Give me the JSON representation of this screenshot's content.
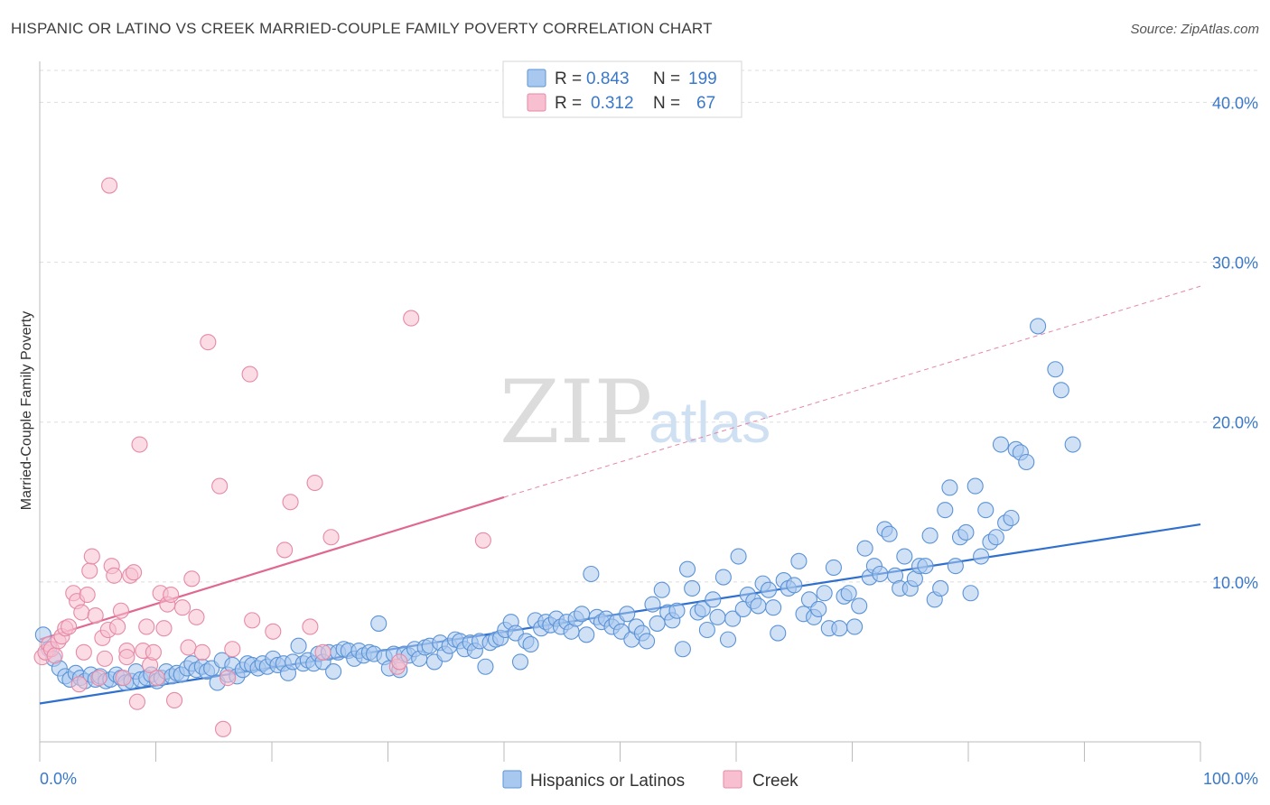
{
  "title": "HISPANIC OR LATINO VS CREEK MARRIED-COUPLE FAMILY POVERTY CORRELATION CHART",
  "source": "Source: ZipAtlas.com",
  "watermark": {
    "zip": "ZIP",
    "atlas": "atlas"
  },
  "chart_data": {
    "type": "scatter",
    "ylabel": "Married-Couple Family Poverty",
    "xlim": [
      0,
      100
    ],
    "ylim": [
      0,
      42
    ],
    "x_tick_labels": [
      "0.0%",
      "100.0%"
    ],
    "y_ticks": [
      10,
      20,
      30,
      40
    ],
    "y_tick_labels": [
      "10.0%",
      "20.0%",
      "30.0%",
      "40.0%"
    ],
    "grid": true,
    "legend_position": "top-center",
    "legend": [
      {
        "r_label": "R =",
        "r_value": "0.843",
        "n_label": "N =",
        "n_value": "199",
        "color": "#a9c8ef",
        "edge": "#5b93d6"
      },
      {
        "r_label": "R =",
        "r_value": "0.312",
        "n_label": "N =",
        "n_value": "67",
        "color": "#f7bfd0",
        "edge": "#e58aa6"
      }
    ],
    "series": [
      {
        "name": "Hispanics or Latinos",
        "color": "#a9c8ef",
        "edge": "#5b93d6",
        "line_color": "#2f6fce",
        "trend": {
          "x0": 0,
          "y0": 2.4,
          "x1": 100,
          "y1": 13.6
        },
        "points": [
          [
            0.3,
            6.7
          ],
          [
            0.8,
            5.8
          ],
          [
            1.2,
            5.2
          ],
          [
            1.7,
            4.6
          ],
          [
            2.2,
            4.1
          ],
          [
            2.6,
            3.9
          ],
          [
            3.1,
            4.3
          ],
          [
            3.5,
            4.0
          ],
          [
            3.9,
            3.8
          ],
          [
            4.4,
            4.2
          ],
          [
            4.8,
            3.9
          ],
          [
            5.2,
            4.1
          ],
          [
            5.7,
            3.8
          ],
          [
            6.1,
            3.9
          ],
          [
            6.6,
            4.2
          ],
          [
            7.0,
            4.0
          ],
          [
            7.4,
            3.7
          ],
          [
            7.9,
            3.8
          ],
          [
            8.3,
            4.4
          ],
          [
            8.7,
            3.9
          ],
          [
            9.2,
            4.0
          ],
          [
            9.6,
            4.2
          ],
          [
            10.1,
            3.8
          ],
          [
            10.5,
            4.0
          ],
          [
            10.9,
            4.4
          ],
          [
            11.4,
            4.1
          ],
          [
            11.8,
            4.3
          ],
          [
            12.2,
            4.2
          ],
          [
            12.7,
            4.6
          ],
          [
            13.1,
            4.9
          ],
          [
            13.5,
            4.5
          ],
          [
            14.0,
            4.7
          ],
          [
            14.4,
            4.4
          ],
          [
            14.8,
            4.6
          ],
          [
            15.3,
            3.7
          ],
          [
            15.7,
            5.1
          ],
          [
            16.2,
            4.2
          ],
          [
            16.6,
            4.8
          ],
          [
            17.0,
            4.1
          ],
          [
            17.5,
            4.5
          ],
          [
            17.9,
            4.9
          ],
          [
            18.3,
            4.8
          ],
          [
            18.8,
            4.6
          ],
          [
            19.2,
            4.9
          ],
          [
            19.6,
            4.7
          ],
          [
            20.1,
            5.2
          ],
          [
            20.5,
            4.8
          ],
          [
            21.0,
            4.9
          ],
          [
            21.4,
            4.3
          ],
          [
            21.8,
            5.0
          ],
          [
            22.3,
            6.0
          ],
          [
            22.7,
            4.9
          ],
          [
            23.1,
            5.1
          ],
          [
            23.6,
            4.9
          ],
          [
            24.0,
            5.5
          ],
          [
            24.4,
            5.0
          ],
          [
            24.9,
            5.6
          ],
          [
            25.3,
            4.4
          ],
          [
            25.7,
            5.6
          ],
          [
            26.2,
            5.8
          ],
          [
            26.6,
            5.7
          ],
          [
            27.1,
            5.2
          ],
          [
            27.5,
            5.7
          ],
          [
            27.9,
            5.4
          ],
          [
            28.4,
            5.6
          ],
          [
            28.8,
            5.5
          ],
          [
            29.2,
            7.4
          ],
          [
            29.7,
            5.3
          ],
          [
            30.1,
            4.6
          ],
          [
            30.5,
            5.5
          ],
          [
            31.0,
            4.5
          ],
          [
            31.4,
            5.5
          ],
          [
            31.8,
            5.4
          ],
          [
            32.3,
            5.8
          ],
          [
            32.7,
            5.2
          ],
          [
            33.2,
            5.9
          ],
          [
            33.6,
            6.0
          ],
          [
            34.0,
            5.0
          ],
          [
            34.5,
            6.2
          ],
          [
            34.9,
            5.5
          ],
          [
            35.3,
            6.0
          ],
          [
            35.8,
            6.4
          ],
          [
            36.2,
            6.3
          ],
          [
            36.6,
            5.8
          ],
          [
            37.1,
            6.2
          ],
          [
            37.5,
            5.7
          ],
          [
            37.9,
            6.3
          ],
          [
            38.4,
            4.7
          ],
          [
            38.8,
            6.2
          ],
          [
            39.3,
            6.4
          ],
          [
            39.7,
            6.5
          ],
          [
            40.1,
            7.0
          ],
          [
            40.6,
            7.5
          ],
          [
            41.0,
            6.8
          ],
          [
            41.4,
            5.0
          ],
          [
            41.9,
            6.3
          ],
          [
            42.3,
            6.1
          ],
          [
            42.7,
            7.6
          ],
          [
            43.2,
            7.1
          ],
          [
            43.6,
            7.5
          ],
          [
            44.0,
            7.3
          ],
          [
            44.5,
            7.7
          ],
          [
            44.9,
            7.2
          ],
          [
            45.4,
            7.5
          ],
          [
            45.8,
            6.9
          ],
          [
            46.2,
            7.7
          ],
          [
            46.7,
            8.0
          ],
          [
            47.1,
            6.7
          ],
          [
            47.5,
            10.5
          ],
          [
            48.0,
            7.8
          ],
          [
            48.4,
            7.5
          ],
          [
            48.8,
            7.7
          ],
          [
            49.3,
            7.2
          ],
          [
            49.7,
            7.5
          ],
          [
            50.1,
            6.9
          ],
          [
            50.6,
            8.0
          ],
          [
            51.0,
            6.4
          ],
          [
            51.4,
            7.2
          ],
          [
            51.9,
            6.8
          ],
          [
            52.3,
            6.3
          ],
          [
            52.8,
            8.6
          ],
          [
            53.2,
            7.4
          ],
          [
            53.6,
            9.5
          ],
          [
            54.1,
            8.1
          ],
          [
            54.5,
            7.6
          ],
          [
            54.9,
            8.2
          ],
          [
            55.4,
            5.8
          ],
          [
            55.8,
            10.8
          ],
          [
            56.2,
            9.6
          ],
          [
            56.7,
            8.1
          ],
          [
            57.1,
            8.3
          ],
          [
            57.5,
            7.0
          ],
          [
            58.0,
            8.9
          ],
          [
            58.4,
            7.8
          ],
          [
            58.9,
            10.3
          ],
          [
            59.3,
            6.4
          ],
          [
            59.7,
            7.7
          ],
          [
            60.2,
            11.6
          ],
          [
            60.6,
            8.3
          ],
          [
            61.0,
            9.2
          ],
          [
            61.5,
            8.8
          ],
          [
            61.9,
            8.5
          ],
          [
            62.3,
            9.9
          ],
          [
            62.8,
            9.5
          ],
          [
            63.2,
            8.4
          ],
          [
            63.6,
            6.8
          ],
          [
            64.1,
            10.1
          ],
          [
            64.5,
            9.6
          ],
          [
            65.0,
            9.8
          ],
          [
            65.4,
            11.3
          ],
          [
            65.8,
            8.0
          ],
          [
            66.3,
            8.9
          ],
          [
            66.7,
            7.8
          ],
          [
            67.1,
            8.3
          ],
          [
            67.6,
            9.3
          ],
          [
            68.0,
            7.1
          ],
          [
            68.4,
            10.9
          ],
          [
            68.9,
            7.1
          ],
          [
            69.3,
            9.1
          ],
          [
            69.7,
            9.3
          ],
          [
            70.2,
            7.2
          ],
          [
            70.6,
            8.5
          ],
          [
            71.1,
            12.1
          ],
          [
            71.5,
            10.3
          ],
          [
            71.9,
            11.0
          ],
          [
            72.4,
            10.5
          ],
          [
            72.8,
            13.3
          ],
          [
            73.2,
            13.0
          ],
          [
            73.7,
            10.4
          ],
          [
            74.1,
            9.6
          ],
          [
            74.5,
            11.6
          ],
          [
            75.0,
            9.6
          ],
          [
            75.4,
            10.2
          ],
          [
            75.8,
            11.0
          ],
          [
            76.3,
            11.0
          ],
          [
            76.7,
            12.9
          ],
          [
            77.1,
            8.9
          ],
          [
            77.6,
            9.6
          ],
          [
            78.0,
            14.5
          ],
          [
            78.4,
            15.9
          ],
          [
            78.9,
            11.0
          ],
          [
            79.3,
            12.8
          ],
          [
            79.8,
            13.1
          ],
          [
            80.2,
            9.3
          ],
          [
            80.6,
            16.0
          ],
          [
            81.1,
            11.6
          ],
          [
            81.5,
            14.5
          ],
          [
            81.9,
            12.5
          ],
          [
            82.4,
            12.8
          ],
          [
            82.8,
            18.6
          ],
          [
            83.2,
            13.7
          ],
          [
            83.7,
            14.0
          ],
          [
            84.1,
            18.3
          ],
          [
            84.5,
            18.1
          ],
          [
            85.0,
            17.5
          ],
          [
            86.0,
            26.0
          ],
          [
            87.5,
            23.3
          ],
          [
            88.0,
            22.0
          ],
          [
            89.0,
            18.6
          ]
        ]
      },
      {
        "name": "Creek",
        "color": "#f7bfd0",
        "edge": "#e58aa6",
        "line_color": "#e06890",
        "trend": {
          "x0": 0,
          "y0": 6.4,
          "x1": 40,
          "y1": 15.3
        },
        "trend_extend": {
          "x0": 40,
          "y0": 15.3,
          "x1": 100,
          "y1": 28.5
        },
        "points": [
          [
            0.2,
            5.3
          ],
          [
            0.5,
            5.6
          ],
          [
            0.8,
            6.1
          ],
          [
            1.0,
            5.8
          ],
          [
            1.3,
            5.4
          ],
          [
            1.6,
            6.3
          ],
          [
            1.9,
            6.6
          ],
          [
            2.2,
            7.1
          ],
          [
            2.5,
            7.2
          ],
          [
            2.9,
            9.3
          ],
          [
            3.2,
            8.8
          ],
          [
            3.4,
            3.6
          ],
          [
            3.6,
            8.1
          ],
          [
            3.8,
            5.6
          ],
          [
            4.1,
            9.2
          ],
          [
            4.3,
            10.7
          ],
          [
            4.5,
            11.6
          ],
          [
            4.8,
            7.9
          ],
          [
            5.1,
            4.0
          ],
          [
            5.4,
            6.5
          ],
          [
            5.6,
            5.2
          ],
          [
            5.9,
            7.0
          ],
          [
            6.2,
            11.0
          ],
          [
            6.4,
            10.4
          ],
          [
            6.7,
            7.2
          ],
          [
            7.0,
            8.2
          ],
          [
            7.2,
            4.0
          ],
          [
            7.5,
            5.7
          ],
          [
            7.8,
            10.4
          ],
          [
            8.1,
            10.6
          ],
          [
            8.4,
            2.5
          ],
          [
            8.6,
            18.6
          ],
          [
            8.9,
            5.7
          ],
          [
            9.2,
            7.2
          ],
          [
            9.5,
            4.8
          ],
          [
            9.8,
            5.6
          ],
          [
            10.1,
            4.0
          ],
          [
            10.4,
            9.3
          ],
          [
            10.7,
            7.1
          ],
          [
            11.0,
            8.6
          ],
          [
            11.3,
            9.2
          ],
          [
            11.6,
            2.6
          ],
          [
            12.3,
            8.4
          ],
          [
            12.8,
            5.9
          ],
          [
            13.1,
            10.2
          ],
          [
            13.5,
            7.8
          ],
          [
            14.0,
            5.6
          ],
          [
            14.5,
            25.0
          ],
          [
            15.5,
            16.0
          ],
          [
            15.8,
            0.8
          ],
          [
            16.2,
            4.0
          ],
          [
            16.6,
            5.8
          ],
          [
            18.1,
            23.0
          ],
          [
            18.3,
            7.6
          ],
          [
            20.1,
            6.9
          ],
          [
            21.1,
            12.0
          ],
          [
            21.6,
            15.0
          ],
          [
            23.3,
            7.2
          ],
          [
            23.7,
            16.2
          ],
          [
            24.4,
            5.6
          ],
          [
            25.1,
            12.8
          ],
          [
            30.8,
            4.7
          ],
          [
            31.0,
            5.0
          ],
          [
            32.0,
            26.5
          ],
          [
            38.2,
            12.6
          ],
          [
            6.0,
            34.8
          ],
          [
            7.5,
            5.3
          ]
        ]
      }
    ]
  }
}
